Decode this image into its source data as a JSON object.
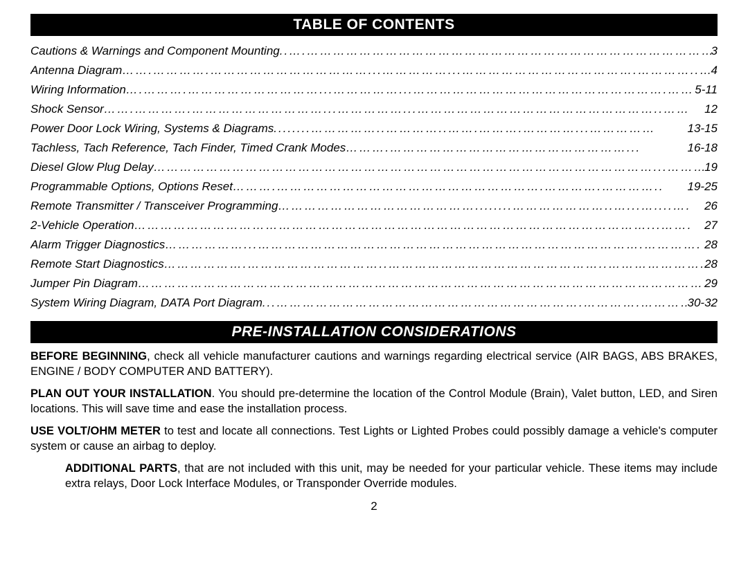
{
  "headers": {
    "toc": "TABLE OF CONTENTS",
    "preinstall": "PRE-INSTALLATION CONSIDERATIONS"
  },
  "toc": [
    {
      "title": "Cautions & Warnings and Component Mounting ",
      "page": "3"
    },
    {
      "title": "Antenna Diagram",
      "page": "4"
    },
    {
      "title": "Wiring Information",
      "page": "5-11"
    },
    {
      "title": "Shock Sensor  ",
      "page": "12"
    },
    {
      "title": "Power Door Lock Wiring, Systems & Diagrams",
      "page": "13-15"
    },
    {
      "title": "Tachless, Tach Reference, Tach Finder, Timed Crank Modes",
      "page": "16-18"
    },
    {
      "title": "Diesel Glow Plug Delay",
      "page": "19"
    },
    {
      "title": "Programmable Options, Options Reset",
      "page": "19-25"
    },
    {
      "title": "Remote Transmitter / Transceiver Programming",
      "page": "26"
    },
    {
      "title": "2-Vehicle Operation",
      "page": "27"
    },
    {
      "title": "Alarm Trigger Diagnostics",
      "page": "28"
    },
    {
      "title": "Remote Start Diagnostics",
      "page": "28"
    },
    {
      "title": "Jumper Pin Diagram",
      "page": "29"
    },
    {
      "title": "System Wiring Diagram, DATA Port Diagram",
      "page": "30-32"
    }
  ],
  "paragraphs": {
    "p1_bold": "BEFORE BEGINNING",
    "p1_rest": ", check all vehicle manufacturer cautions and warnings regarding electrical service (AIR BAGS, ABS BRAKES, ENGINE / BODY COMPUTER AND BATTERY).",
    "p2_bold": "PLAN OUT YOUR INSTALLATION",
    "p2_rest": ".  You should pre-determine the location of the Control Module (Brain), Valet button, LED, and Siren locations.  This will save time and ease the installation process.",
    "p3_bold": "USE VOLT/OHM METER",
    "p3_rest": " to test and locate all connections.  Test Lights or Lighted Probes could possibly damage a vehicle's computer system or cause an airbag to deploy.",
    "p4_bold": "ADDITIONAL PARTS",
    "p4_rest": ", that are not included with this unit, may be needed for your particular vehicle.  These items may include extra relays, Door Lock Interface Modules, or Transponder Override modules."
  },
  "page_number": "2"
}
